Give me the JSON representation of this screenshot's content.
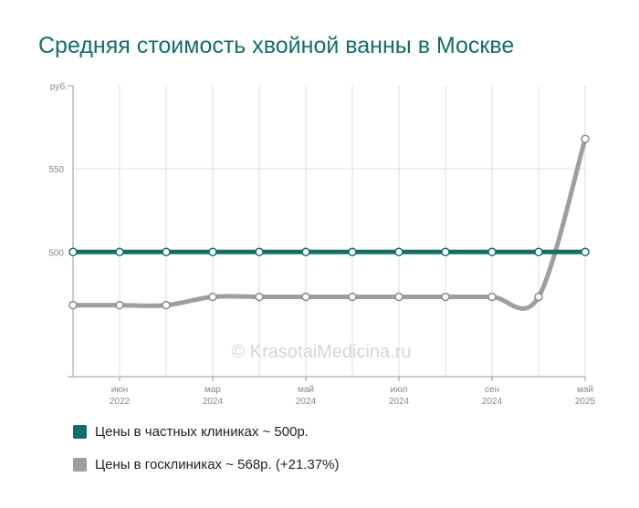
{
  "title": "Средняя стоимость хвойной ванны в Москве",
  "watermark": "© KrasotaiMedicina.ru",
  "colors": {
    "title": "#136f63",
    "private": "#136f63",
    "state": "#9e9e9e",
    "grid": "#dddddd",
    "axis": "#999999"
  },
  "legend": [
    {
      "label": "Цены в частных клиниках ~ 500р.",
      "color": "#136f63"
    },
    {
      "label": "Цены в госклиниках ~ 568р. (+21.37%)",
      "color": "#9e9e9e"
    }
  ],
  "chart_data": {
    "type": "line",
    "ylabel": "руб.",
    "ylim": [
      425,
      600
    ],
    "yticks": [
      550,
      500
    ],
    "x": [
      0,
      1,
      2,
      3,
      4,
      5,
      6,
      7,
      8,
      9,
      10,
      11
    ],
    "xticks": [
      {
        "at": 1,
        "month": "июн",
        "year": "2022"
      },
      {
        "at": 3,
        "month": "мар",
        "year": "2024"
      },
      {
        "at": 5,
        "month": "май",
        "year": "2024"
      },
      {
        "at": 7,
        "month": "июл",
        "year": "2024"
      },
      {
        "at": 9,
        "month": "сен",
        "year": "2024"
      },
      {
        "at": 11,
        "month": "май",
        "year": "2025"
      }
    ],
    "series": [
      {
        "name": "Цены в частных клиниках ~ 500р.",
        "values": [
          500,
          500,
          500,
          500,
          500,
          500,
          500,
          500,
          500,
          500,
          500,
          500
        ]
      },
      {
        "name": "Цены в госклиниках ~ 568р. (+21.37%)",
        "values": [
          468,
          468,
          468,
          473,
          473,
          473,
          473,
          473,
          473,
          473,
          473,
          568
        ]
      }
    ]
  }
}
